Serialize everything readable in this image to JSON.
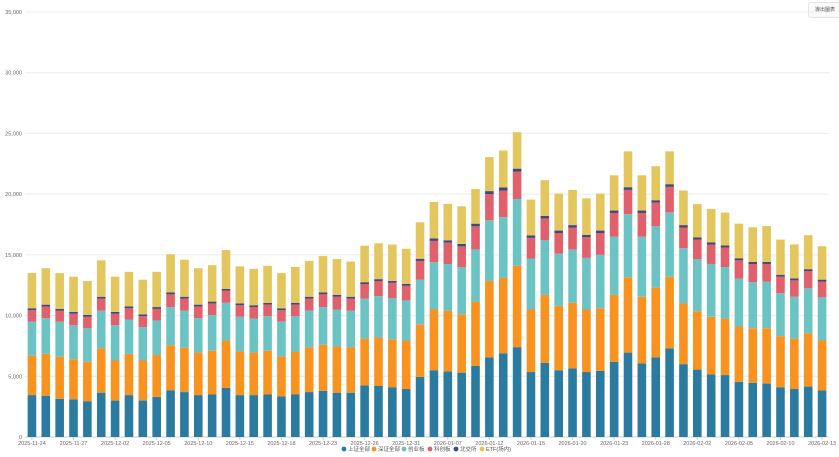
{
  "toolbar": {
    "export_label": "導出圖表"
  },
  "colors": {
    "sh": "#2b7aa0",
    "sz": "#f7931e",
    "cyb": "#6cc3c4",
    "kcb": "#e0616b",
    "bj": "#3d4a7a",
    "etf": "#e4c65f",
    "grid": "#ececec",
    "axis": "#cccccc"
  },
  "chart_data": {
    "type": "bar",
    "stacked": true,
    "title": "",
    "xlabel": "",
    "ylabel": "",
    "ylim": [
      0,
      35000
    ],
    "y_ticks": [
      0,
      5000,
      10000,
      15000,
      20000,
      25000,
      30000,
      35000
    ],
    "y_tick_labels": [
      "0",
      "5,000",
      "10,000",
      "15,000",
      "20,000",
      "25,000",
      "30,000",
      "35,000"
    ],
    "x_tick_labels": [
      {
        "index": 0,
        "label": "2025-11-24"
      },
      {
        "index": 3,
        "label": "2025-11-27"
      },
      {
        "index": 6,
        "label": "2025-12-02"
      },
      {
        "index": 9,
        "label": "2025-12-05"
      },
      {
        "index": 12,
        "label": "2025-12-10"
      },
      {
        "index": 15,
        "label": "2025-12-15"
      },
      {
        "index": 18,
        "label": "2025-12-18"
      },
      {
        "index": 21,
        "label": "2025-12-23"
      },
      {
        "index": 24,
        "label": "2025-12-26"
      },
      {
        "index": 27,
        "label": "2025-12-31"
      },
      {
        "index": 30,
        "label": "2026-01-07"
      },
      {
        "index": 33,
        "label": "2026-01-12"
      },
      {
        "index": 36,
        "label": "2026-01-15"
      },
      {
        "index": 39,
        "label": "2026-01-20"
      },
      {
        "index": 42,
        "label": "2026-01-23"
      },
      {
        "index": 45,
        "label": "2026-01-28"
      },
      {
        "index": 48,
        "label": "2026-02-02"
      },
      {
        "index": 51,
        "label": "2026-02-05"
      },
      {
        "index": 54,
        "label": "2026-02-10"
      },
      {
        "index": 57,
        "label": "2026-02-13"
      }
    ],
    "legend": [
      "上证全部",
      "深证全部",
      "创业板",
      "科创板",
      "北交所",
      "ETF(场内)"
    ],
    "series": [
      {
        "name": "上证全部",
        "color_key": "sh",
        "values": [
          3450,
          3400,
          3150,
          3100,
          2950,
          3650,
          3000,
          3450,
          3000,
          3300,
          3850,
          3700,
          3450,
          3500,
          4050,
          3450,
          3450,
          3500,
          3350,
          3500,
          3700,
          3800,
          3650,
          3650,
          4250,
          4200,
          4100,
          3950,
          4950,
          5500,
          5400,
          5300,
          5850,
          6550,
          6900,
          7400,
          5350,
          6100,
          5500,
          5650,
          5350,
          5450,
          6200,
          6950,
          6050,
          6550,
          7300,
          6000,
          5550,
          5150,
          5100,
          4550,
          4450,
          4400,
          4100,
          3950,
          4150,
          3850
        ]
      },
      {
        "name": "深证全部",
        "color_key": "sz",
        "values": [
          3250,
          3450,
          3450,
          3300,
          3250,
          3650,
          3300,
          3400,
          3300,
          3450,
          3700,
          3650,
          3500,
          3600,
          3900,
          3600,
          3500,
          3600,
          3300,
          3500,
          3700,
          3800,
          3800,
          3750,
          3850,
          4000,
          3950,
          4000,
          4300,
          5000,
          5000,
          4800,
          5300,
          6300,
          6200,
          6700,
          5150,
          5600,
          5300,
          5400,
          5150,
          5150,
          5500,
          6200,
          5500,
          5750,
          5900,
          5000,
          4800,
          4750,
          4650,
          4550,
          4500,
          4550,
          4200,
          4150,
          4400,
          4100
        ]
      },
      {
        "name": "创业板",
        "color_key": "cyb",
        "values": [
          2800,
          2950,
          2900,
          2800,
          2750,
          3100,
          2900,
          2800,
          2750,
          2850,
          3150,
          3050,
          2850,
          2950,
          3100,
          2850,
          2800,
          2850,
          2850,
          2950,
          3000,
          3100,
          3050,
          3000,
          3300,
          3400,
          3400,
          3300,
          3700,
          3900,
          3850,
          3900,
          4300,
          5000,
          5000,
          5500,
          4200,
          4500,
          4300,
          4400,
          4250,
          4400,
          4800,
          5200,
          4950,
          5050,
          5300,
          4550,
          4300,
          4350,
          4250,
          3950,
          3800,
          3850,
          3550,
          3450,
          3700,
          3550
        ]
      },
      {
        "name": "科创板",
        "color_key": "kcb",
        "values": [
          950,
          950,
          900,
          950,
          950,
          1000,
          950,
          950,
          900,
          950,
          1050,
          1000,
          950,
          950,
          1000,
          950,
          950,
          950,
          950,
          950,
          1000,
          1050,
          1050,
          1000,
          1200,
          1250,
          1250,
          1200,
          1550,
          1750,
          1750,
          1700,
          1900,
          2150,
          2200,
          2250,
          1700,
          1800,
          1700,
          1800,
          1700,
          1800,
          1950,
          2000,
          1950,
          1950,
          2100,
          1700,
          1600,
          1600,
          1600,
          1500,
          1500,
          1450,
          1350,
          1350,
          1400,
          1300
        ]
      },
      {
        "name": "北交所",
        "color_key": "bj",
        "values": [
          150,
          150,
          150,
          150,
          150,
          150,
          150,
          150,
          150,
          150,
          150,
          150,
          150,
          150,
          150,
          150,
          150,
          150,
          150,
          150,
          150,
          150,
          150,
          150,
          150,
          150,
          150,
          150,
          180,
          200,
          200,
          200,
          220,
          250,
          250,
          250,
          200,
          200,
          200,
          200,
          200,
          200,
          200,
          220,
          200,
          200,
          220,
          200,
          180,
          180,
          180,
          170,
          170,
          170,
          160,
          160,
          170,
          160
        ]
      },
      {
        "name": "ETF(场内)",
        "color_key": "etf",
        "values": [
          2900,
          3000,
          2950,
          2900,
          2800,
          3000,
          2900,
          2850,
          2850,
          2900,
          3150,
          3050,
          3000,
          3000,
          3200,
          3050,
          3000,
          3050,
          2900,
          2950,
          2950,
          3000,
          2950,
          2900,
          3000,
          2950,
          3000,
          2900,
          3000,
          3000,
          3000,
          3100,
          2850,
          2800,
          3050,
          3000,
          2950,
          2950,
          3050,
          2900,
          3000,
          3050,
          2900,
          2950,
          2900,
          2800,
          2700,
          2850,
          2750,
          2750,
          2700,
          2850,
          2850,
          2950,
          2900,
          2800,
          2800,
          2750
        ]
      }
    ]
  }
}
